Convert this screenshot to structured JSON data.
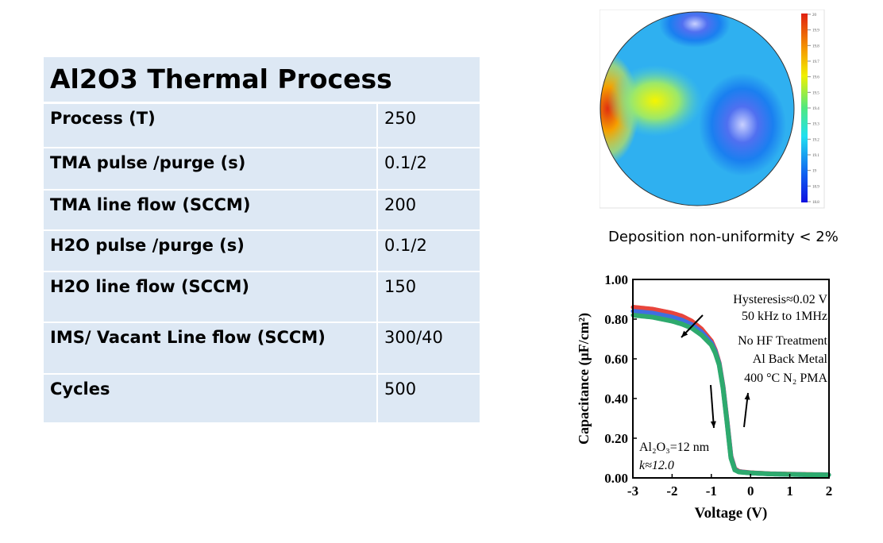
{
  "table": {
    "title": "Al2O3 Thermal Process",
    "rows": [
      {
        "param": "Process (T)",
        "value": "250"
      },
      {
        "param": "TMA pulse /purge (s)",
        "value": "0.1/2"
      },
      {
        "param": "TMA line flow (SCCM)",
        "value": "200"
      },
      {
        "param": "H2O pulse /purge (s)",
        "value": "0.1/2"
      },
      {
        "param": "H2O line flow (SCCM)",
        "value": "150"
      },
      {
        "param": "IMS/ Vacant Line flow (SCCM)",
        "value": "300/40"
      },
      {
        "param": "Cycles",
        "value": "500"
      }
    ]
  },
  "caption": "Deposition non-uniformity < 2%",
  "colors": {
    "table_bg": "#dde8f4",
    "red": "#e8453c",
    "blue": "#3f6fe0",
    "green": "#2eaa6e"
  },
  "chart_data": [
    {
      "type": "heatmap",
      "description_kind": "wafer thickness contour map",
      "colorbar_ticks": [
        "20",
        "19.9",
        "19.8",
        "19.7",
        "19.6",
        "19.5",
        "19.4",
        "19.3",
        "19.2",
        "19.1",
        "19",
        "18.9",
        "18.8"
      ],
      "range": [
        18.8,
        20
      ]
    },
    {
      "type": "line",
      "xlabel": "Voltage (V)",
      "ylabel": "Capacitance (μF/cm²)",
      "xlim": [
        -3,
        2
      ],
      "ylim": [
        0,
        1.0
      ],
      "xticks": [
        "-3",
        "-2",
        "-1",
        "0",
        "1",
        "2"
      ],
      "yticks": [
        "0.00",
        "0.20",
        "0.40",
        "0.60",
        "0.80",
        "1.00"
      ],
      "x": [
        -3,
        -2.75,
        -2.5,
        -2.25,
        -2,
        -1.75,
        -1.5,
        -1.25,
        -1,
        -0.9,
        -0.8,
        -0.7,
        -0.6,
        -0.5,
        -0.4,
        -0.3,
        -0.2,
        0,
        0.5,
        1,
        1.5,
        2
      ],
      "series": [
        {
          "color": "#e8453c",
          "values": [
            0.86,
            0.855,
            0.85,
            0.84,
            0.83,
            0.815,
            0.79,
            0.75,
            0.69,
            0.645,
            0.58,
            0.46,
            0.29,
            0.11,
            0.045,
            0.033,
            0.03,
            0.026,
            0.021,
            0.019,
            0.017,
            0.016
          ]
        },
        {
          "color": "#3f6fe0",
          "values": [
            0.84,
            0.835,
            0.83,
            0.82,
            0.81,
            0.795,
            0.772,
            0.735,
            0.68,
            0.638,
            0.575,
            0.455,
            0.285,
            0.105,
            0.042,
            0.031,
            0.029,
            0.025,
            0.02,
            0.018,
            0.016,
            0.015
          ]
        },
        {
          "color": "#2eaa6e",
          "values": [
            0.82,
            0.815,
            0.81,
            0.8,
            0.79,
            0.775,
            0.755,
            0.72,
            0.67,
            0.63,
            0.57,
            0.45,
            0.28,
            0.1,
            0.04,
            0.03,
            0.028,
            0.025,
            0.02,
            0.018,
            0.016,
            0.015
          ]
        }
      ],
      "annotations": [
        "Hysteresis≈0.02 V",
        "50 kHz to 1MHz",
        "No HF Treatment",
        "Al Back Metal",
        "400 °C N₂ PMA",
        "Al₂O₃=12 nm",
        "k≈12.0"
      ]
    }
  ]
}
